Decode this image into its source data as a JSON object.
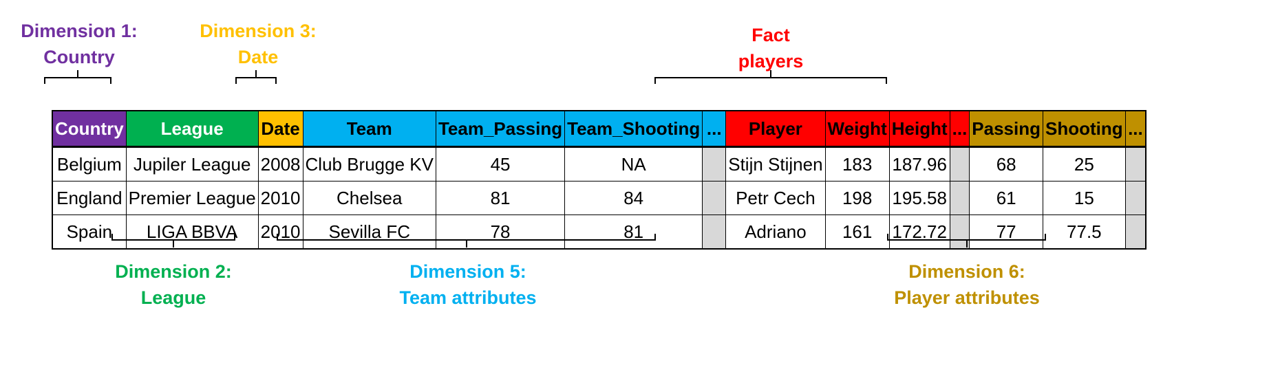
{
  "colors": {
    "country": "#7030a0",
    "league": "#00b050",
    "date": "#ffc000",
    "team": "#00b0f0",
    "fact": "#ff0000",
    "player_attr": "#bf9000",
    "filler": "#d8d8d8"
  },
  "labels": {
    "dim1": [
      "Dimension 1:",
      "Country"
    ],
    "dim3": [
      "Dimension 3:",
      "Date"
    ],
    "fact": [
      "Fact",
      "players"
    ],
    "dim2": [
      "Dimension 2:",
      "League"
    ],
    "dim5": [
      "Dimension 5:",
      "Team attributes"
    ],
    "dim6": [
      "Dimension 6:",
      "Player attributes"
    ]
  },
  "table": {
    "headers": [
      "Country",
      "League",
      "Date",
      "Team",
      "Team_Passing",
      "Team_Shooting",
      "...",
      "Player",
      "Weight",
      "Height",
      "...",
      "Passing",
      "Shooting",
      "..."
    ],
    "rows": [
      [
        "Belgium",
        "Jupiler League",
        "2008",
        "Club Brugge KV",
        "45",
        "NA",
        "",
        "Stijn Stijnen",
        "183",
        "187.96",
        "",
        "68",
        "25",
        ""
      ],
      [
        "England",
        "Premier League",
        "2010",
        "Chelsea",
        "81",
        "84",
        "",
        "Petr Cech",
        "198",
        "195.58",
        "",
        "61",
        "15",
        ""
      ],
      [
        "Spain",
        "LIGA BBVA",
        "2010",
        "Sevilla FC",
        "78",
        "81",
        "",
        "Adriano",
        "161",
        "172.72",
        "",
        "77",
        "77.5",
        ""
      ]
    ]
  }
}
